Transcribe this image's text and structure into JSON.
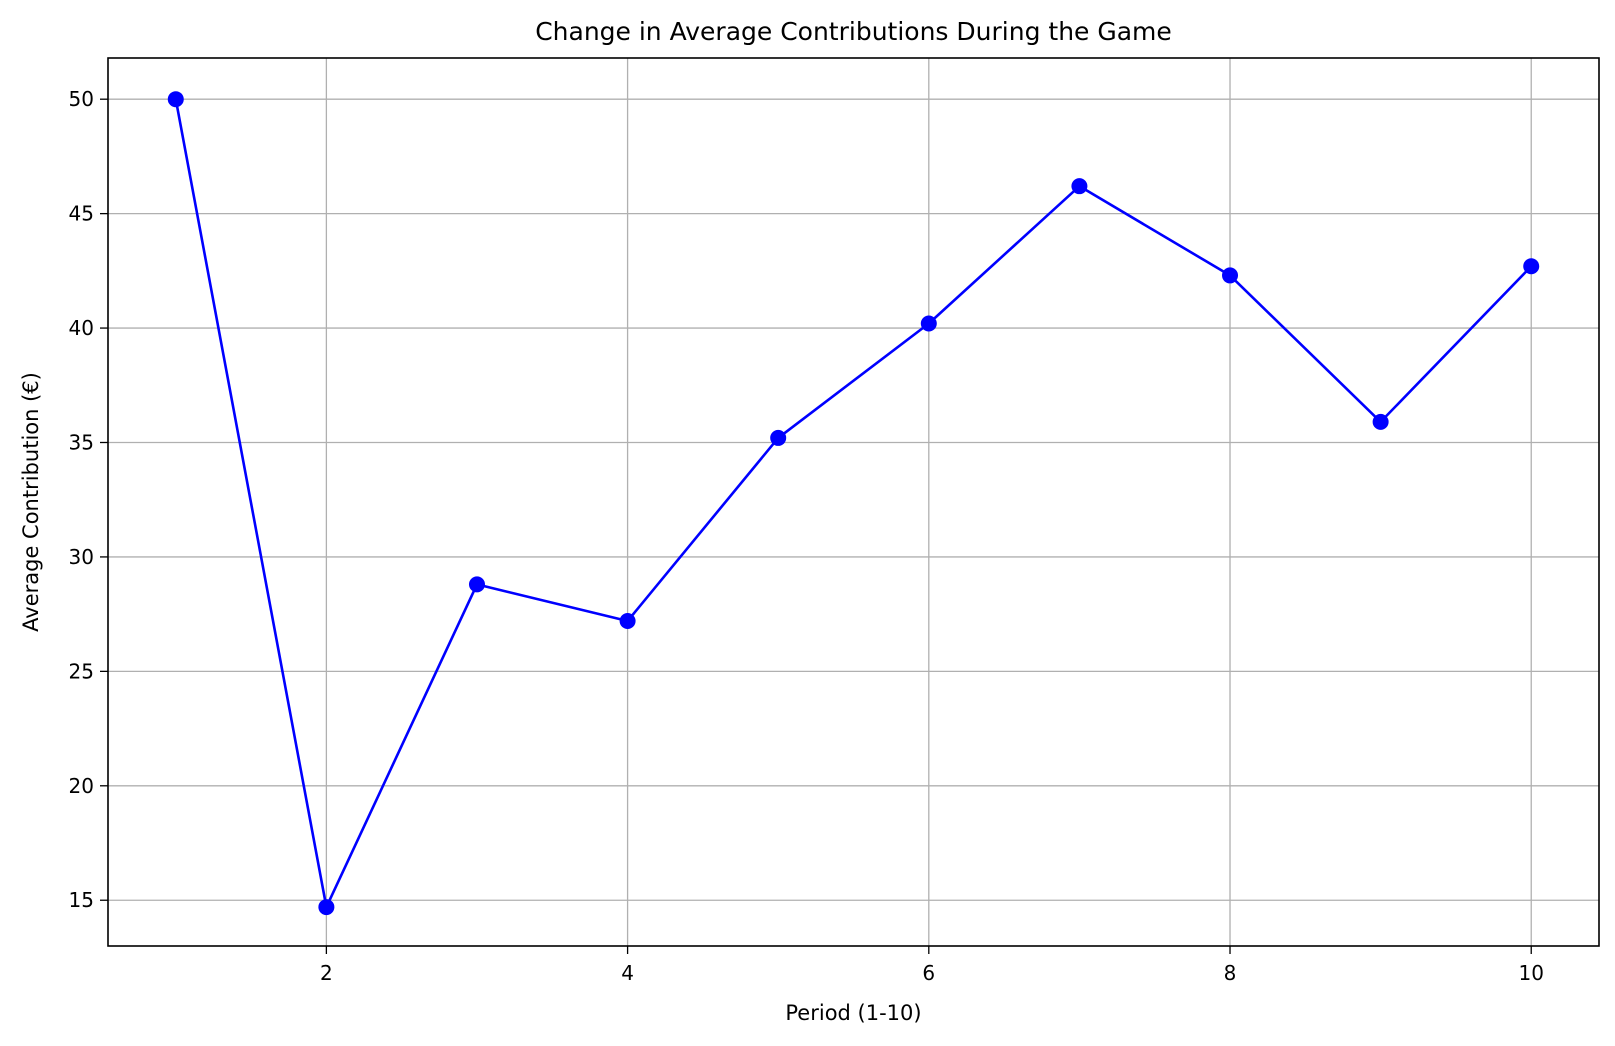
{
  "chart_data": {
    "type": "line",
    "title": "Change in Average Contributions During the Game",
    "xlabel": "Period (1-10)",
    "ylabel": "Average Contribution (€)",
    "x": [
      1,
      2,
      3,
      4,
      5,
      6,
      7,
      8,
      9,
      10
    ],
    "series": [
      {
        "values": [
          50.0,
          14.7,
          28.8,
          27.2,
          35.2,
          40.2,
          46.2,
          42.3,
          35.9,
          42.7
        ],
        "color": "#0000ff",
        "marker": "circle"
      }
    ],
    "xlim": [
      0.55,
      10.45
    ],
    "ylim": [
      13.0,
      51.8
    ],
    "xticks": [
      2,
      4,
      6,
      8,
      10
    ],
    "yticks": [
      15,
      20,
      25,
      30,
      35,
      40,
      45,
      50
    ],
    "grid": true,
    "grid_color": "#b0b0b0"
  }
}
